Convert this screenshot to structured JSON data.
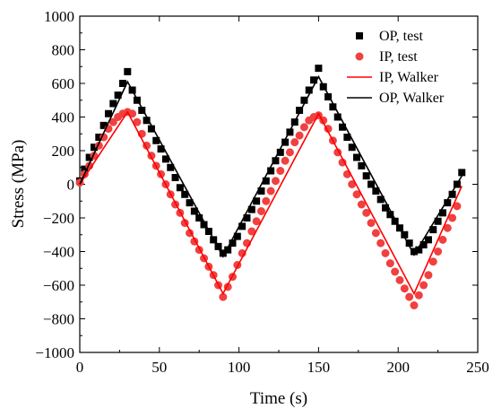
{
  "chart_data": {
    "type": "line",
    "xlabel": "Time (s)",
    "ylabel": "Stress (MPa)",
    "xlim": [
      0,
      250
    ],
    "ylim": [
      -1000,
      1000
    ],
    "xticks": [
      0,
      50,
      100,
      150,
      200,
      250
    ],
    "yticks": [
      -1000,
      -800,
      -600,
      -400,
      -200,
      0,
      200,
      400,
      600,
      800,
      1000
    ],
    "grid": false,
    "legend_position": "top-right",
    "series": [
      {
        "name": "OP, test",
        "kind": "scatter",
        "marker": "square",
        "color": "#000000",
        "x": [
          0,
          3,
          6,
          9,
          12,
          15,
          18,
          21,
          24,
          27,
          30,
          33,
          36,
          39,
          42,
          45,
          48,
          51,
          54,
          57,
          60,
          63,
          66,
          69,
          72,
          75,
          78,
          81,
          84,
          87,
          90,
          93,
          96,
          99,
          102,
          105,
          108,
          111,
          114,
          117,
          120,
          123,
          126,
          129,
          132,
          135,
          138,
          141,
          144,
          147,
          150,
          153,
          156,
          159,
          162,
          165,
          168,
          171,
          174,
          177,
          180,
          183,
          186,
          189,
          192,
          195,
          198,
          201,
          204,
          207,
          210,
          213,
          216,
          219,
          222,
          225,
          228,
          231,
          234,
          237,
          240
        ],
        "y": [
          20,
          90,
          160,
          220,
          280,
          350,
          420,
          480,
          530,
          600,
          670,
          560,
          500,
          440,
          380,
          330,
          260,
          210,
          150,
          100,
          40,
          -20,
          -60,
          -110,
          -160,
          -200,
          -240,
          -280,
          -330,
          -370,
          -410,
          -390,
          -350,
          -310,
          -250,
          -200,
          -150,
          -100,
          -40,
          20,
          80,
          140,
          190,
          250,
          310,
          370,
          440,
          500,
          560,
          620,
          690,
          580,
          520,
          460,
          400,
          340,
          280,
          220,
          160,
          110,
          50,
          0,
          -40,
          -90,
          -140,
          -180,
          -220,
          -260,
          -300,
          -350,
          -400,
          -390,
          -360,
          -330,
          -270,
          -220,
          -170,
          -110,
          -60,
          0,
          70
        ]
      },
      {
        "name": "IP, test",
        "kind": "scatter",
        "marker": "circle",
        "color": "#f04040",
        "x": [
          0,
          3,
          6,
          9,
          12,
          15,
          18,
          21,
          24,
          27,
          30,
          33,
          36,
          39,
          42,
          45,
          48,
          51,
          54,
          57,
          60,
          63,
          66,
          69,
          72,
          75,
          78,
          81,
          84,
          87,
          90,
          93,
          96,
          99,
          102,
          105,
          108,
          111,
          114,
          117,
          120,
          123,
          126,
          129,
          132,
          135,
          138,
          141,
          144,
          147,
          150,
          153,
          156,
          159,
          162,
          165,
          168,
          171,
          174,
          177,
          180,
          183,
          186,
          189,
          192,
          195,
          198,
          201,
          204,
          207,
          210,
          213,
          216,
          219,
          222,
          225,
          228,
          231,
          234,
          237
        ],
        "y": [
          10,
          60,
          110,
          170,
          230,
          280,
          330,
          370,
          400,
          420,
          430,
          420,
          370,
          300,
          230,
          170,
          110,
          60,
          0,
          -60,
          -120,
          -170,
          -230,
          -290,
          -340,
          -390,
          -440,
          -490,
          -540,
          -600,
          -670,
          -610,
          -550,
          -480,
          -410,
          -350,
          -280,
          -220,
          -160,
          -100,
          -40,
          20,
          80,
          140,
          190,
          250,
          290,
          340,
          380,
          400,
          410,
          380,
          330,
          260,
          190,
          130,
          60,
          0,
          -60,
          -120,
          -170,
          -230,
          -290,
          -350,
          -410,
          -470,
          -520,
          -570,
          -620,
          -670,
          -720,
          -660,
          -600,
          -540,
          -460,
          -400,
          -330,
          -260,
          -200,
          -130
        ]
      },
      {
        "name": "IP, Walker",
        "kind": "line",
        "color": "#ff0000",
        "x": [
          0,
          30,
          90,
          150,
          210,
          240
        ],
        "y": [
          0,
          430,
          -650,
          420,
          -650,
          -10
        ]
      },
      {
        "name": "OP, Walker",
        "kind": "line",
        "color": "#000000",
        "x": [
          0,
          30,
          90,
          150,
          210,
          240
        ],
        "y": [
          0,
          610,
          -430,
          640,
          -420,
          50
        ]
      }
    ]
  }
}
